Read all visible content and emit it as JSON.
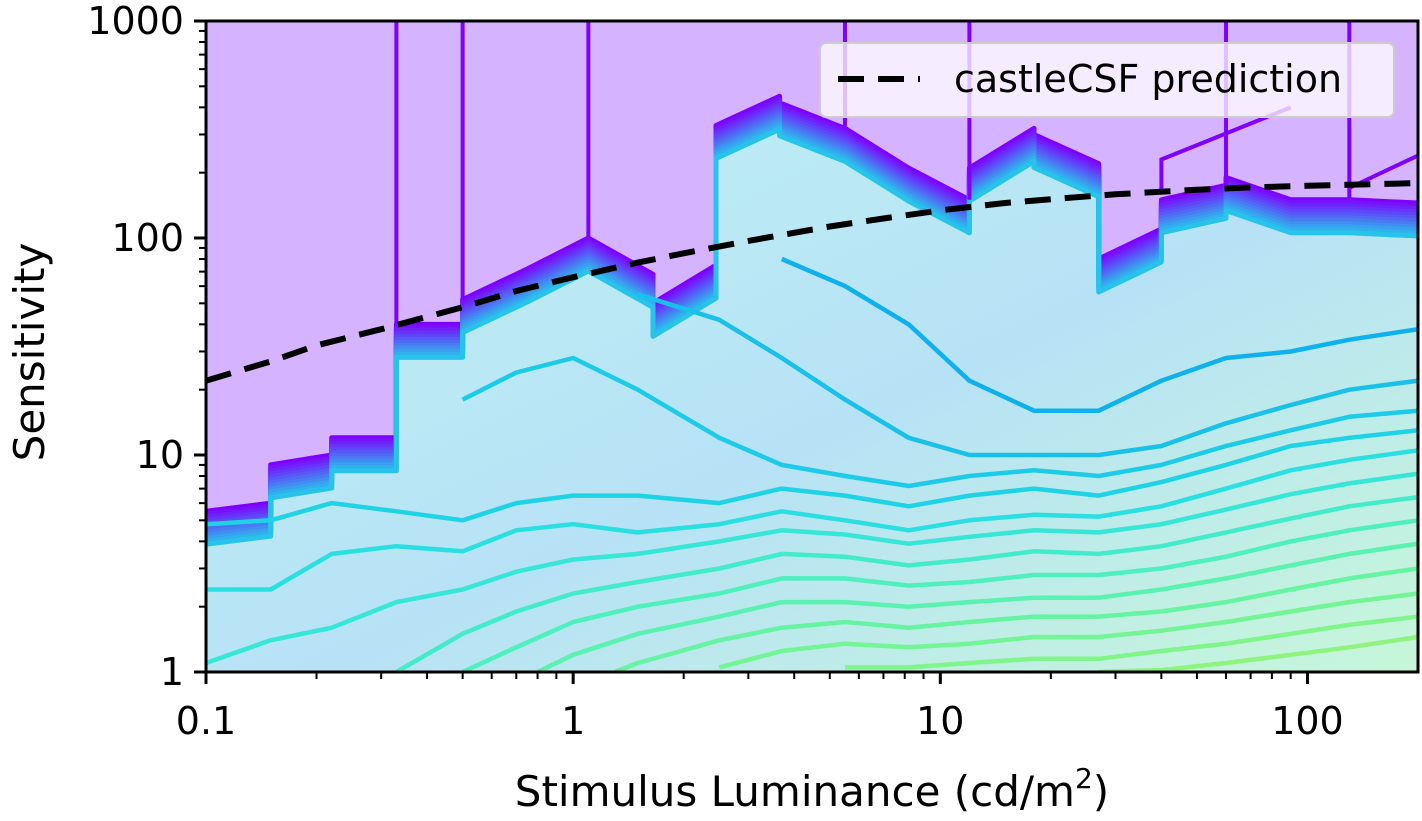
{
  "chart_data": {
    "type": "contour",
    "title": "",
    "xlabel_main": "Stimulus Luminance (cd/m",
    "xlabel_sup": "2",
    "xlabel_close": ")",
    "ylabel": "Sensitivity",
    "xscale": "log",
    "yscale": "log",
    "xlim": [
      0.1,
      200
    ],
    "ylim": [
      1,
      1000
    ],
    "xticks": [
      {
        "value": 0.1,
        "label": "0.1"
      },
      {
        "value": 1,
        "label": "1"
      },
      {
        "value": 10,
        "label": "10"
      },
      {
        "value": 100,
        "label": "100"
      }
    ],
    "yticks": [
      {
        "value": 1,
        "label": "1"
      },
      {
        "value": 10,
        "label": "10"
      },
      {
        "value": 100,
        "label": "100"
      },
      {
        "value": 1000,
        "label": "1000"
      }
    ],
    "legend": {
      "position": "top-right",
      "entries": [
        {
          "label": "castleCSF prediction",
          "style": "dashed",
          "color": "#000000"
        }
      ]
    },
    "grid": false,
    "colormap": "rainbow (purple to green)",
    "colors": {
      "outside_region": "#d5b3ff",
      "high_level_contour": "#7f00ff",
      "mid_level_contour": "#1ec9e6",
      "low_level_contour": "#5ef5a8",
      "prediction_line": "#000000"
    },
    "series": [
      {
        "name": "castleCSF prediction",
        "type": "line",
        "x": [
          0.1,
          0.15,
          0.2,
          0.3,
          0.5,
          0.7,
          1,
          1.5,
          2,
          3,
          5,
          7,
          10,
          15,
          20,
          30,
          50,
          70,
          100,
          150,
          200
        ],
        "y": [
          22,
          27,
          32,
          38,
          48,
          57,
          66,
          77,
          85,
          97,
          113,
          123,
          134,
          145,
          151,
          159,
          167,
          171,
          174,
          177,
          179
        ]
      }
    ],
    "region_boundary": {
      "x": [
        0.1,
        0.15,
        0.15,
        0.22,
        0.22,
        0.33,
        0.33,
        0.5,
        0.5,
        0.75,
        1.1,
        1.65,
        1.65,
        2.45,
        2.45,
        3.65,
        3.65,
        5.5,
        8.2,
        12,
        12,
        18,
        18,
        27,
        27,
        40,
        40,
        60,
        60,
        90,
        130,
        200
      ],
      "y": [
        5.5,
        6,
        9,
        10,
        12,
        12,
        40,
        40,
        52,
        72,
        100,
        68,
        50,
        75,
        330,
        450,
        420,
        320,
        210,
        150,
        210,
        320,
        300,
        220,
        80,
        110,
        150,
        175,
        190,
        150,
        150,
        145
      ]
    },
    "contour_levels": [
      {
        "level": "c10",
        "color": "#1fd3e6",
        "x": [
          0.1,
          0.15,
          0.22,
          0.33,
          0.5,
          0.7,
          1.0,
          1.5,
          2.5,
          3.7,
          5.5,
          8.2,
          12,
          18,
          27,
          40,
          60,
          90,
          130,
          200
        ],
        "y": [
          4.8,
          5.0,
          6.0,
          5.5,
          5.0,
          6.0,
          6.5,
          6.5,
          6.0,
          7.0,
          6.5,
          5.8,
          6.5,
          7.0,
          6.5,
          7.5,
          9.0,
          11,
          12,
          13
        ]
      },
      {
        "level": "c11",
        "color": "#2adfe1",
        "x": [
          0.1,
          0.15,
          0.22,
          0.33,
          0.5,
          0.7,
          1.0,
          1.5,
          2.5,
          3.7,
          5.5,
          8.2,
          12,
          18,
          27,
          40,
          60,
          90,
          130,
          200
        ],
        "y": [
          2.4,
          2.4,
          3.5,
          3.8,
          3.6,
          4.5,
          4.8,
          4.4,
          4.8,
          5.5,
          5.0,
          4.5,
          5.0,
          5.3,
          5.2,
          5.8,
          7.0,
          8.5,
          9.5,
          10.5
        ]
      },
      {
        "level": "c12",
        "color": "#36e6d6",
        "x": [
          0.1,
          0.15,
          0.22,
          0.33,
          0.5,
          0.7,
          1.0,
          1.5,
          2.5,
          3.7,
          5.5,
          8.2,
          12,
          18,
          27,
          40,
          60,
          90,
          130,
          200
        ],
        "y": [
          1.1,
          1.4,
          1.6,
          2.1,
          2.4,
          2.9,
          3.3,
          3.5,
          4.0,
          4.5,
          4.3,
          3.9,
          4.2,
          4.5,
          4.4,
          4.8,
          5.6,
          6.6,
          7.4,
          8.2
        ]
      },
      {
        "level": "c13",
        "color": "#42ecca",
        "x": [
          0.33,
          0.5,
          0.7,
          1.0,
          1.5,
          2.5,
          3.7,
          5.5,
          8.2,
          12,
          18,
          27,
          40,
          60,
          90,
          130,
          200
        ],
        "y": [
          1.0,
          1.5,
          1.9,
          2.3,
          2.6,
          3.0,
          3.5,
          3.4,
          3.1,
          3.3,
          3.6,
          3.5,
          3.8,
          4.4,
          5.1,
          5.8,
          6.4
        ]
      },
      {
        "level": "c14",
        "color": "#4ef0bd",
        "x": [
          0.5,
          0.7,
          1.0,
          1.5,
          2.5,
          3.7,
          5.5,
          8.2,
          12,
          18,
          27,
          40,
          60,
          90,
          130,
          200
        ],
        "y": [
          1.0,
          1.3,
          1.7,
          2.0,
          2.3,
          2.7,
          2.7,
          2.5,
          2.6,
          2.8,
          2.8,
          3.0,
          3.4,
          4.0,
          4.5,
          5.0
        ]
      },
      {
        "level": "c15",
        "color": "#5af2b0",
        "x": [
          0.8,
          1.0,
          1.5,
          2.5,
          3.7,
          5.5,
          8.2,
          12,
          18,
          27,
          40,
          60,
          90,
          130,
          200
        ],
        "y": [
          1.0,
          1.2,
          1.5,
          1.8,
          2.1,
          2.1,
          2.0,
          2.1,
          2.2,
          2.2,
          2.4,
          2.7,
          3.1,
          3.5,
          3.9
        ]
      },
      {
        "level": "c16",
        "color": "#66f4a3",
        "x": [
          1.3,
          1.5,
          2.5,
          3.7,
          5.5,
          8.2,
          12,
          18,
          27,
          40,
          60,
          90,
          130,
          200
        ],
        "y": [
          1.0,
          1.1,
          1.4,
          1.6,
          1.7,
          1.6,
          1.7,
          1.8,
          1.8,
          1.9,
          2.1,
          2.4,
          2.7,
          3.0
        ]
      },
      {
        "level": "c17",
        "color": "#73f596",
        "x": [
          2.5,
          3.7,
          5.5,
          8.2,
          12,
          18,
          27,
          40,
          60,
          90,
          130,
          200
        ],
        "y": [
          1.05,
          1.25,
          1.35,
          1.3,
          1.35,
          1.45,
          1.45,
          1.55,
          1.7,
          1.9,
          2.1,
          2.3
        ]
      },
      {
        "level": "c18",
        "color": "#80f58a",
        "x": [
          5.5,
          8.2,
          12,
          18,
          27,
          40,
          60,
          90,
          130,
          200
        ],
        "y": [
          1.05,
          1.05,
          1.1,
          1.15,
          1.15,
          1.25,
          1.35,
          1.5,
          1.65,
          1.8
        ]
      },
      {
        "level": "c19",
        "color": "#8ef47e",
        "x": [
          27,
          40,
          60,
          90,
          130,
          200
        ],
        "y": [
          1.0,
          1.02,
          1.1,
          1.2,
          1.3,
          1.45
        ]
      }
    ],
    "inner_contours": [
      {
        "level": "c7",
        "color": "#0fb0ee",
        "x": [
          3.7,
          5.5,
          8.2,
          12,
          18,
          27,
          40,
          60,
          90,
          130,
          200
        ],
        "y": [
          80,
          60,
          40,
          22,
          16,
          16,
          22,
          28,
          30,
          34,
          38
        ]
      },
      {
        "level": "c8",
        "color": "#18c0ea",
        "x": [
          1.5,
          2.5,
          3.7,
          5.5,
          8.2,
          12,
          18,
          27,
          40,
          60,
          90,
          130,
          200
        ],
        "y": [
          55,
          42,
          28,
          18,
          12,
          10,
          10,
          10,
          11,
          14,
          17,
          20,
          22
        ]
      },
      {
        "level": "c9",
        "color": "#1ccbe8",
        "x": [
          0.5,
          0.7,
          1.0,
          1.5,
          2.5,
          3.7,
          5.5,
          8.2,
          12,
          18,
          27,
          40,
          60,
          90,
          130,
          200
        ],
        "y": [
          18,
          24,
          28,
          20,
          12,
          9,
          8.0,
          7.2,
          8.0,
          8.5,
          8.0,
          9.0,
          11,
          13,
          15,
          16
        ]
      }
    ]
  }
}
